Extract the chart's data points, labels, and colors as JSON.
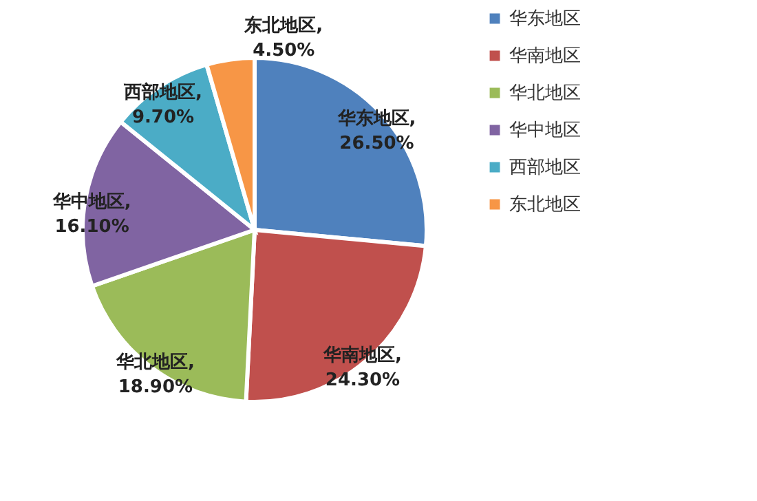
{
  "chart_data": {
    "type": "pie",
    "categories": [
      "华东地区",
      "华南地区",
      "华北地区",
      "华中地区",
      "西部地区",
      "东北地区"
    ],
    "values": [
      26.5,
      24.3,
      18.9,
      16.1,
      9.7,
      4.5
    ],
    "value_labels": [
      "华东地区,\n26.50%",
      "华南地区,\n24.30%",
      "华北地区,\n18.90%",
      "华中地区,\n16.10%",
      "西部地区,\n9.70%",
      "东北地区,\n4.50%"
    ],
    "colors": [
      "#4f81bd",
      "#c0504d",
      "#9bbb59",
      "#8064a2",
      "#4bacc6",
      "#f79646"
    ],
    "legend": "right"
  }
}
